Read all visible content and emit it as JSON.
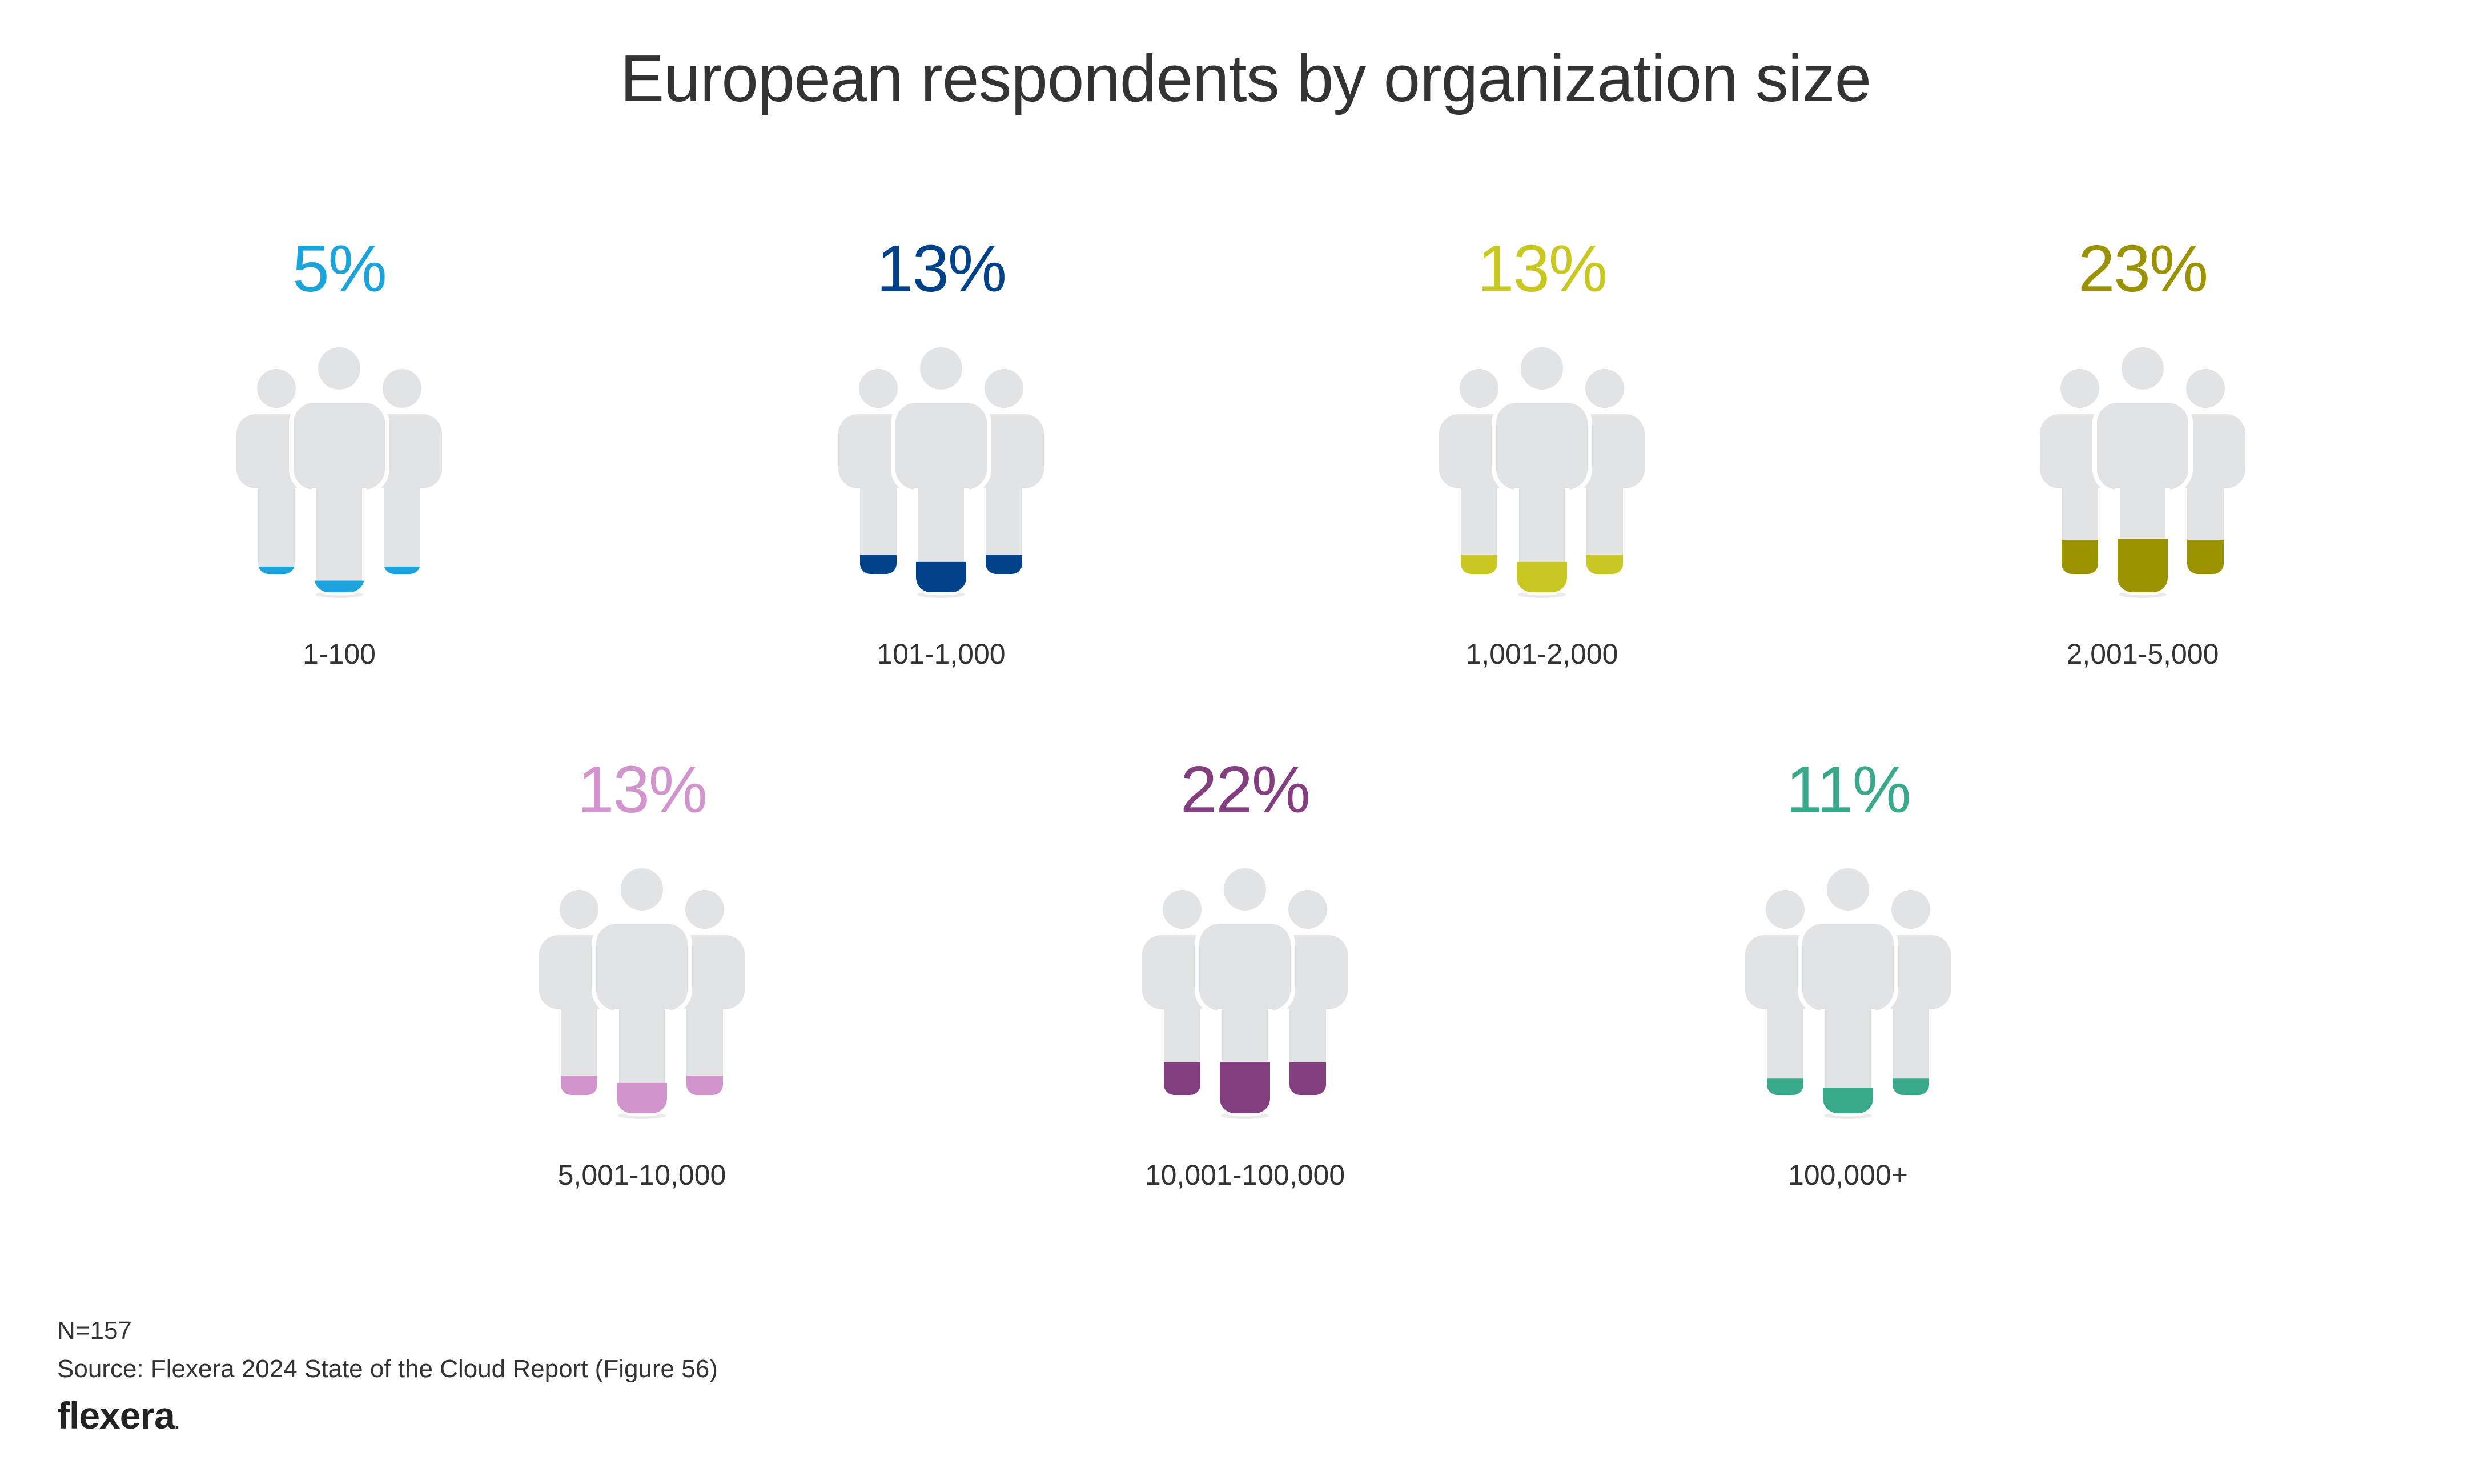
{
  "title": "European respondents by organization size",
  "chart_data": {
    "type": "pictogram",
    "title": "European respondents by organization size",
    "unit": "%",
    "categories": [
      "1-100",
      "101-1,000",
      "1,001-2,000",
      "2,001-5,000",
      "5,001-10,000",
      "10,001-100,000",
      "100,000+"
    ],
    "values": [
      5,
      13,
      13,
      23,
      13,
      22,
      11
    ],
    "labels": [
      "5%",
      "13%",
      "13%",
      "23%",
      "13%",
      "22%",
      "11%"
    ],
    "colors": [
      "#1ba3dc",
      "#00428a",
      "#c9c823",
      "#9a9200",
      "#d294cc",
      "#833e80",
      "#3aa88b"
    ],
    "base_color": "#e2e3e5"
  },
  "footer": {
    "n": "N=157",
    "source": "Source: Flexera 2024 State of the Cloud Report (Figure 56)",
    "logo": "flexera",
    "logo_dot": "."
  }
}
